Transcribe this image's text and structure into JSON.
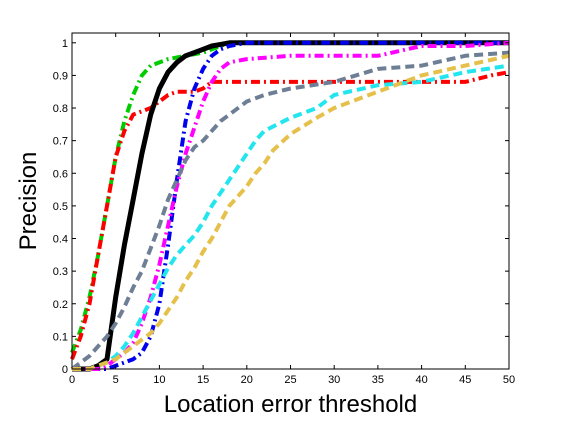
{
  "chart_data": {
    "type": "line",
    "title": "",
    "xlabel": "Location error threshold",
    "ylabel": "Precision",
    "xlim": [
      0,
      50
    ],
    "ylim": [
      0,
      1.03
    ],
    "xticks": [
      0,
      5,
      10,
      15,
      20,
      25,
      30,
      35,
      40,
      45,
      50
    ],
    "xtick_labels": [
      "0",
      "5",
      "10",
      "15",
      "20",
      "25",
      "30",
      "35",
      "40",
      "45",
      "50"
    ],
    "yticks": [
      0,
      0.1,
      0.2,
      0.3,
      0.4,
      0.5,
      0.6,
      0.7,
      0.8,
      0.9,
      1
    ],
    "ytick_labels": [
      "0",
      "0.1",
      "0.2",
      "0.3",
      "0.4",
      "0.5",
      "0.6",
      "0.7",
      "0.8",
      "0.9",
      "1"
    ],
    "grid": false,
    "legend": "none",
    "series": [
      {
        "color": "#00cc00",
        "style": "dashdot",
        "x": [
          0,
          1,
          2,
          3,
          4,
          5,
          6,
          7,
          8,
          9,
          10,
          11,
          12,
          13,
          14,
          15,
          16,
          17,
          18,
          20,
          25,
          30,
          35,
          40,
          45,
          50
        ],
        "y": [
          0.05,
          0.12,
          0.22,
          0.35,
          0.5,
          0.65,
          0.76,
          0.84,
          0.9,
          0.93,
          0.94,
          0.95,
          0.955,
          0.96,
          0.965,
          0.97,
          0.98,
          0.99,
          1,
          1,
          1,
          1,
          1,
          1,
          1,
          1
        ]
      },
      {
        "color": "#ff0000",
        "style": "dashdot",
        "x": [
          0,
          1,
          2,
          3,
          4,
          5,
          6,
          7,
          8,
          9,
          10,
          11,
          12,
          13,
          14,
          15,
          16,
          18,
          20,
          25,
          30,
          35,
          40,
          45,
          48,
          50
        ],
        "y": [
          0.03,
          0.1,
          0.2,
          0.35,
          0.5,
          0.65,
          0.73,
          0.78,
          0.79,
          0.8,
          0.82,
          0.84,
          0.85,
          0.85,
          0.85,
          0.86,
          0.88,
          0.88,
          0.88,
          0.88,
          0.88,
          0.88,
          0.88,
          0.88,
          0.9,
          0.91
        ]
      },
      {
        "color": "#000000",
        "style": "solid",
        "x": [
          0,
          1,
          2,
          3,
          4,
          5,
          6,
          7,
          8,
          9,
          10,
          11,
          12,
          13,
          14,
          15,
          16,
          17,
          18,
          20,
          25,
          30,
          35,
          40,
          45,
          50
        ],
        "y": [
          0,
          0,
          0,
          0.01,
          0.03,
          0.22,
          0.38,
          0.52,
          0.66,
          0.78,
          0.86,
          0.91,
          0.94,
          0.96,
          0.97,
          0.98,
          0.99,
          0.995,
          1,
          1,
          1,
          1,
          1,
          1,
          1,
          1
        ]
      },
      {
        "color": "#0000ee",
        "style": "dashdot",
        "x": [
          0,
          1,
          2,
          3,
          4,
          5,
          6,
          7,
          8,
          9,
          10,
          11,
          12,
          13,
          14,
          15,
          16,
          17,
          18,
          20,
          25,
          30,
          35,
          40,
          45,
          50
        ],
        "y": [
          0,
          0,
          0,
          0,
          0,
          0.01,
          0.02,
          0.03,
          0.05,
          0.1,
          0.2,
          0.38,
          0.58,
          0.76,
          0.86,
          0.92,
          0.96,
          0.98,
          0.99,
          1,
          1,
          1,
          1,
          1,
          1,
          1
        ]
      },
      {
        "color": "#ff00ff",
        "style": "dashdot",
        "x": [
          0,
          3,
          4,
          5,
          6,
          7,
          8,
          9,
          10,
          11,
          12,
          13,
          14,
          15,
          16,
          17,
          18,
          20,
          25,
          30,
          35,
          40,
          45,
          50
        ],
        "y": [
          0,
          0,
          0.01,
          0.03,
          0.05,
          0.08,
          0.14,
          0.22,
          0.32,
          0.44,
          0.56,
          0.66,
          0.74,
          0.82,
          0.88,
          0.92,
          0.94,
          0.95,
          0.96,
          0.96,
          0.96,
          0.99,
          0.99,
          1
        ]
      },
      {
        "color": "#6e7f95",
        "style": "dashed",
        "x": [
          0,
          1,
          2,
          3,
          4,
          5,
          6,
          7,
          8,
          9,
          10,
          11,
          12,
          13,
          14,
          15,
          16,
          17,
          18,
          20,
          22,
          25,
          30,
          35,
          40,
          45,
          50
        ],
        "y": [
          0,
          0.02,
          0.04,
          0.07,
          0.1,
          0.14,
          0.19,
          0.25,
          0.3,
          0.37,
          0.44,
          0.52,
          0.58,
          0.64,
          0.68,
          0.7,
          0.73,
          0.76,
          0.78,
          0.82,
          0.84,
          0.86,
          0.88,
          0.92,
          0.93,
          0.96,
          0.97
        ]
      },
      {
        "color": "#22e5ee",
        "style": "dashed",
        "x": [
          0,
          2,
          3,
          4,
          5,
          6,
          7,
          8,
          9,
          10,
          11,
          12,
          13,
          14,
          15,
          16,
          17,
          18,
          19,
          20,
          21,
          22,
          25,
          28,
          30,
          35,
          40,
          45,
          50
        ],
        "y": [
          0,
          0,
          0.01,
          0.02,
          0.04,
          0.07,
          0.11,
          0.16,
          0.21,
          0.26,
          0.31,
          0.35,
          0.38,
          0.41,
          0.45,
          0.5,
          0.54,
          0.58,
          0.62,
          0.66,
          0.7,
          0.73,
          0.77,
          0.8,
          0.84,
          0.87,
          0.88,
          0.91,
          0.93
        ]
      },
      {
        "color": "#e5c04a",
        "style": "dashed",
        "x": [
          0,
          2,
          3,
          4,
          5,
          6,
          7,
          8,
          9,
          10,
          11,
          12,
          13,
          14,
          15,
          16,
          17,
          18,
          19,
          20,
          21,
          22,
          23,
          25,
          28,
          30,
          35,
          40,
          45,
          50
        ],
        "y": [
          0,
          0,
          0.01,
          0.02,
          0.03,
          0.05,
          0.07,
          0.09,
          0.11,
          0.14,
          0.18,
          0.22,
          0.27,
          0.31,
          0.36,
          0.4,
          0.45,
          0.5,
          0.53,
          0.56,
          0.6,
          0.63,
          0.67,
          0.72,
          0.77,
          0.8,
          0.85,
          0.9,
          0.93,
          0.96
        ]
      }
    ]
  }
}
